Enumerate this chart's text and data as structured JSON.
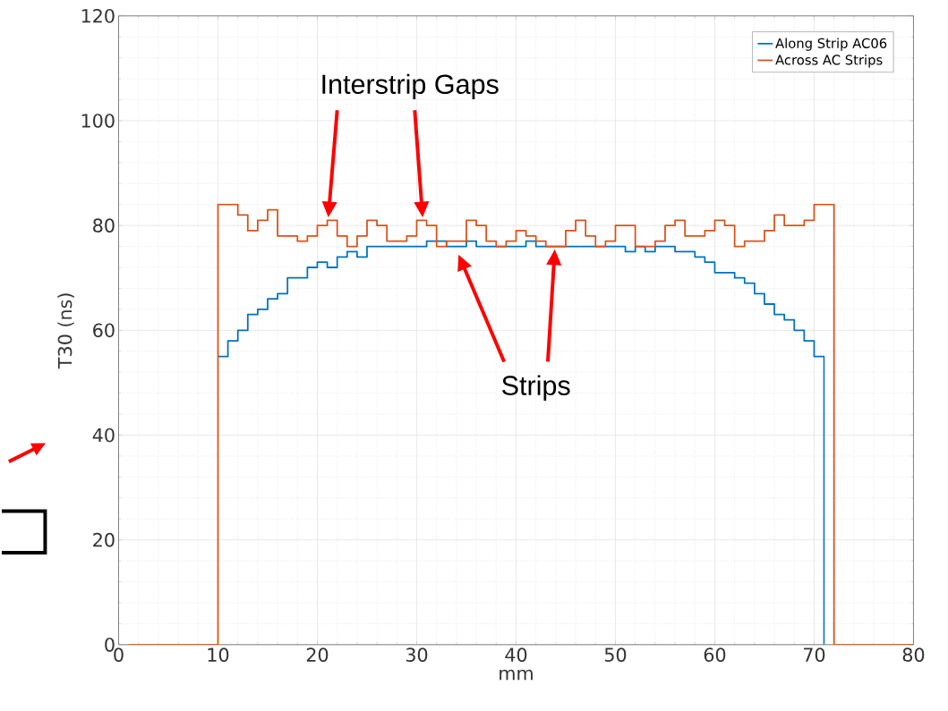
{
  "chart_data": {
    "type": "step",
    "xlabel": "mm",
    "ylabel": "T30 (ns)",
    "xlim": [
      0,
      80
    ],
    "ylim": [
      0,
      120
    ],
    "xticks": [
      0,
      10,
      20,
      30,
      40,
      50,
      60,
      70,
      80
    ],
    "yticks": [
      0,
      20,
      40,
      60,
      80,
      100,
      120
    ],
    "grid": true,
    "legend": "top right",
    "annotations": [
      "Interstrip Gaps",
      "Strips"
    ],
    "series": [
      {
        "name": "Along Strip AC06",
        "color": "#0072bd",
        "x": [
          10,
          11,
          12,
          13,
          14,
          15,
          16,
          17,
          18,
          19,
          20,
          21,
          22,
          23,
          24,
          25,
          26,
          27,
          28,
          29,
          30,
          31,
          32,
          33,
          34,
          35,
          36,
          37,
          38,
          39,
          40,
          41,
          42,
          43,
          44,
          45,
          46,
          47,
          48,
          49,
          50,
          51,
          52,
          53,
          54,
          55,
          56,
          57,
          58,
          59,
          60,
          61,
          62,
          63,
          64,
          65,
          66,
          67,
          68,
          69,
          70,
          71
        ],
        "values": [
          55,
          58,
          60,
          63,
          64,
          66,
          67,
          70,
          70,
          72,
          73,
          72,
          74,
          75,
          74,
          76,
          76,
          76,
          76,
          76,
          76,
          77,
          77,
          76,
          76,
          77,
          76,
          76,
          76,
          76,
          76,
          77,
          76,
          76,
          null,
          76,
          76,
          76,
          76,
          76,
          76,
          75,
          76,
          75,
          76,
          76,
          75,
          75,
          74,
          73,
          71,
          71,
          70,
          69,
          67,
          65,
          63,
          62,
          60,
          58,
          55,
          0
        ]
      },
      {
        "name": "Across AC Strips",
        "color": "#d95319",
        "x": [
          1,
          10,
          11,
          12,
          13,
          14,
          15,
          16,
          17,
          18,
          19,
          20,
          21,
          22,
          23,
          24,
          25,
          26,
          27,
          28,
          29,
          30,
          31,
          32,
          33,
          34,
          35,
          36,
          37,
          38,
          39,
          40,
          41,
          42,
          43,
          44,
          45,
          46,
          47,
          48,
          49,
          50,
          51,
          52,
          53,
          54,
          55,
          56,
          57,
          58,
          59,
          60,
          61,
          62,
          63,
          64,
          65,
          66,
          67,
          68,
          69,
          70,
          71,
          72,
          80
        ],
        "values": [
          0,
          84,
          84,
          82,
          79,
          81,
          83,
          78,
          78,
          77,
          78,
          80,
          81,
          78,
          76,
          78,
          81,
          80,
          77,
          77,
          78,
          81,
          80,
          76,
          77,
          77,
          81,
          80,
          77,
          76,
          77,
          79,
          78,
          77,
          76,
          76,
          79,
          81,
          78,
          76,
          77,
          80,
          80,
          76,
          76,
          77,
          80,
          81,
          78,
          78,
          79,
          81,
          80,
          76,
          77,
          77,
          79,
          82,
          80,
          80,
          81,
          84,
          84,
          0,
          0
        ]
      }
    ]
  }
}
